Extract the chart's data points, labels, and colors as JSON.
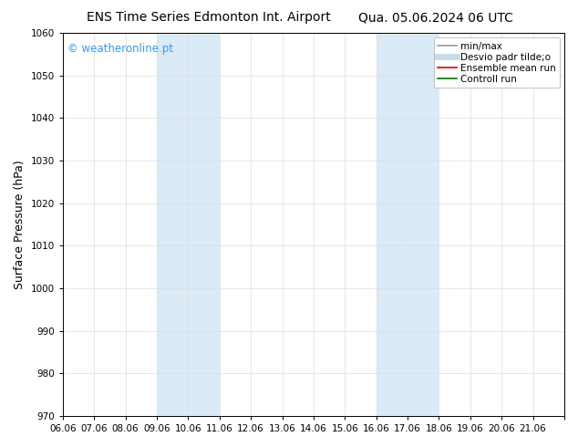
{
  "title_left": "ENS Time Series Edmonton Int. Airport",
  "title_right": "Qua. 05.06.2024 06 UTC",
  "ylabel": "Surface Pressure (hPa)",
  "watermark": "© weatheronline.pt",
  "watermark_color": "#3399ff",
  "ylim": [
    970,
    1060
  ],
  "yticks": [
    970,
    980,
    990,
    1000,
    1010,
    1020,
    1030,
    1040,
    1050,
    1060
  ],
  "xlim": [
    0,
    16
  ],
  "xtick_positions": [
    0,
    1,
    2,
    3,
    4,
    5,
    6,
    7,
    8,
    9,
    10,
    11,
    12,
    13,
    14,
    15,
    16
  ],
  "xtick_labels": [
    "06.06",
    "07.06",
    "08.06",
    "09.06",
    "10.06",
    "11.06",
    "12.06",
    "13.06",
    "14.06",
    "15.06",
    "16.06",
    "17.06",
    "18.06",
    "19.06",
    "20.06",
    "21.06",
    ""
  ],
  "shaded_regions": [
    {
      "xstart": 3,
      "xend": 5,
      "color": "#daeaf7"
    },
    {
      "xstart": 10,
      "xend": 12,
      "color": "#daeaf7"
    }
  ],
  "legend_entries": [
    {
      "label": "min/max",
      "color": "#999999",
      "lw": 1.2
    },
    {
      "label": "Desvio padr tilde;o",
      "color": "#c8dcea",
      "lw": 5
    },
    {
      "label": "Ensemble mean run",
      "color": "#dd0000",
      "lw": 1.2
    },
    {
      "label": "Controll run",
      "color": "#007700",
      "lw": 1.2
    }
  ],
  "bg_color": "#ffffff",
  "grid_color": "#dddddd",
  "title_fontsize": 10,
  "ylabel_fontsize": 9,
  "tick_fontsize": 7.5,
  "watermark_fontsize": 8.5,
  "legend_fontsize": 7.5
}
